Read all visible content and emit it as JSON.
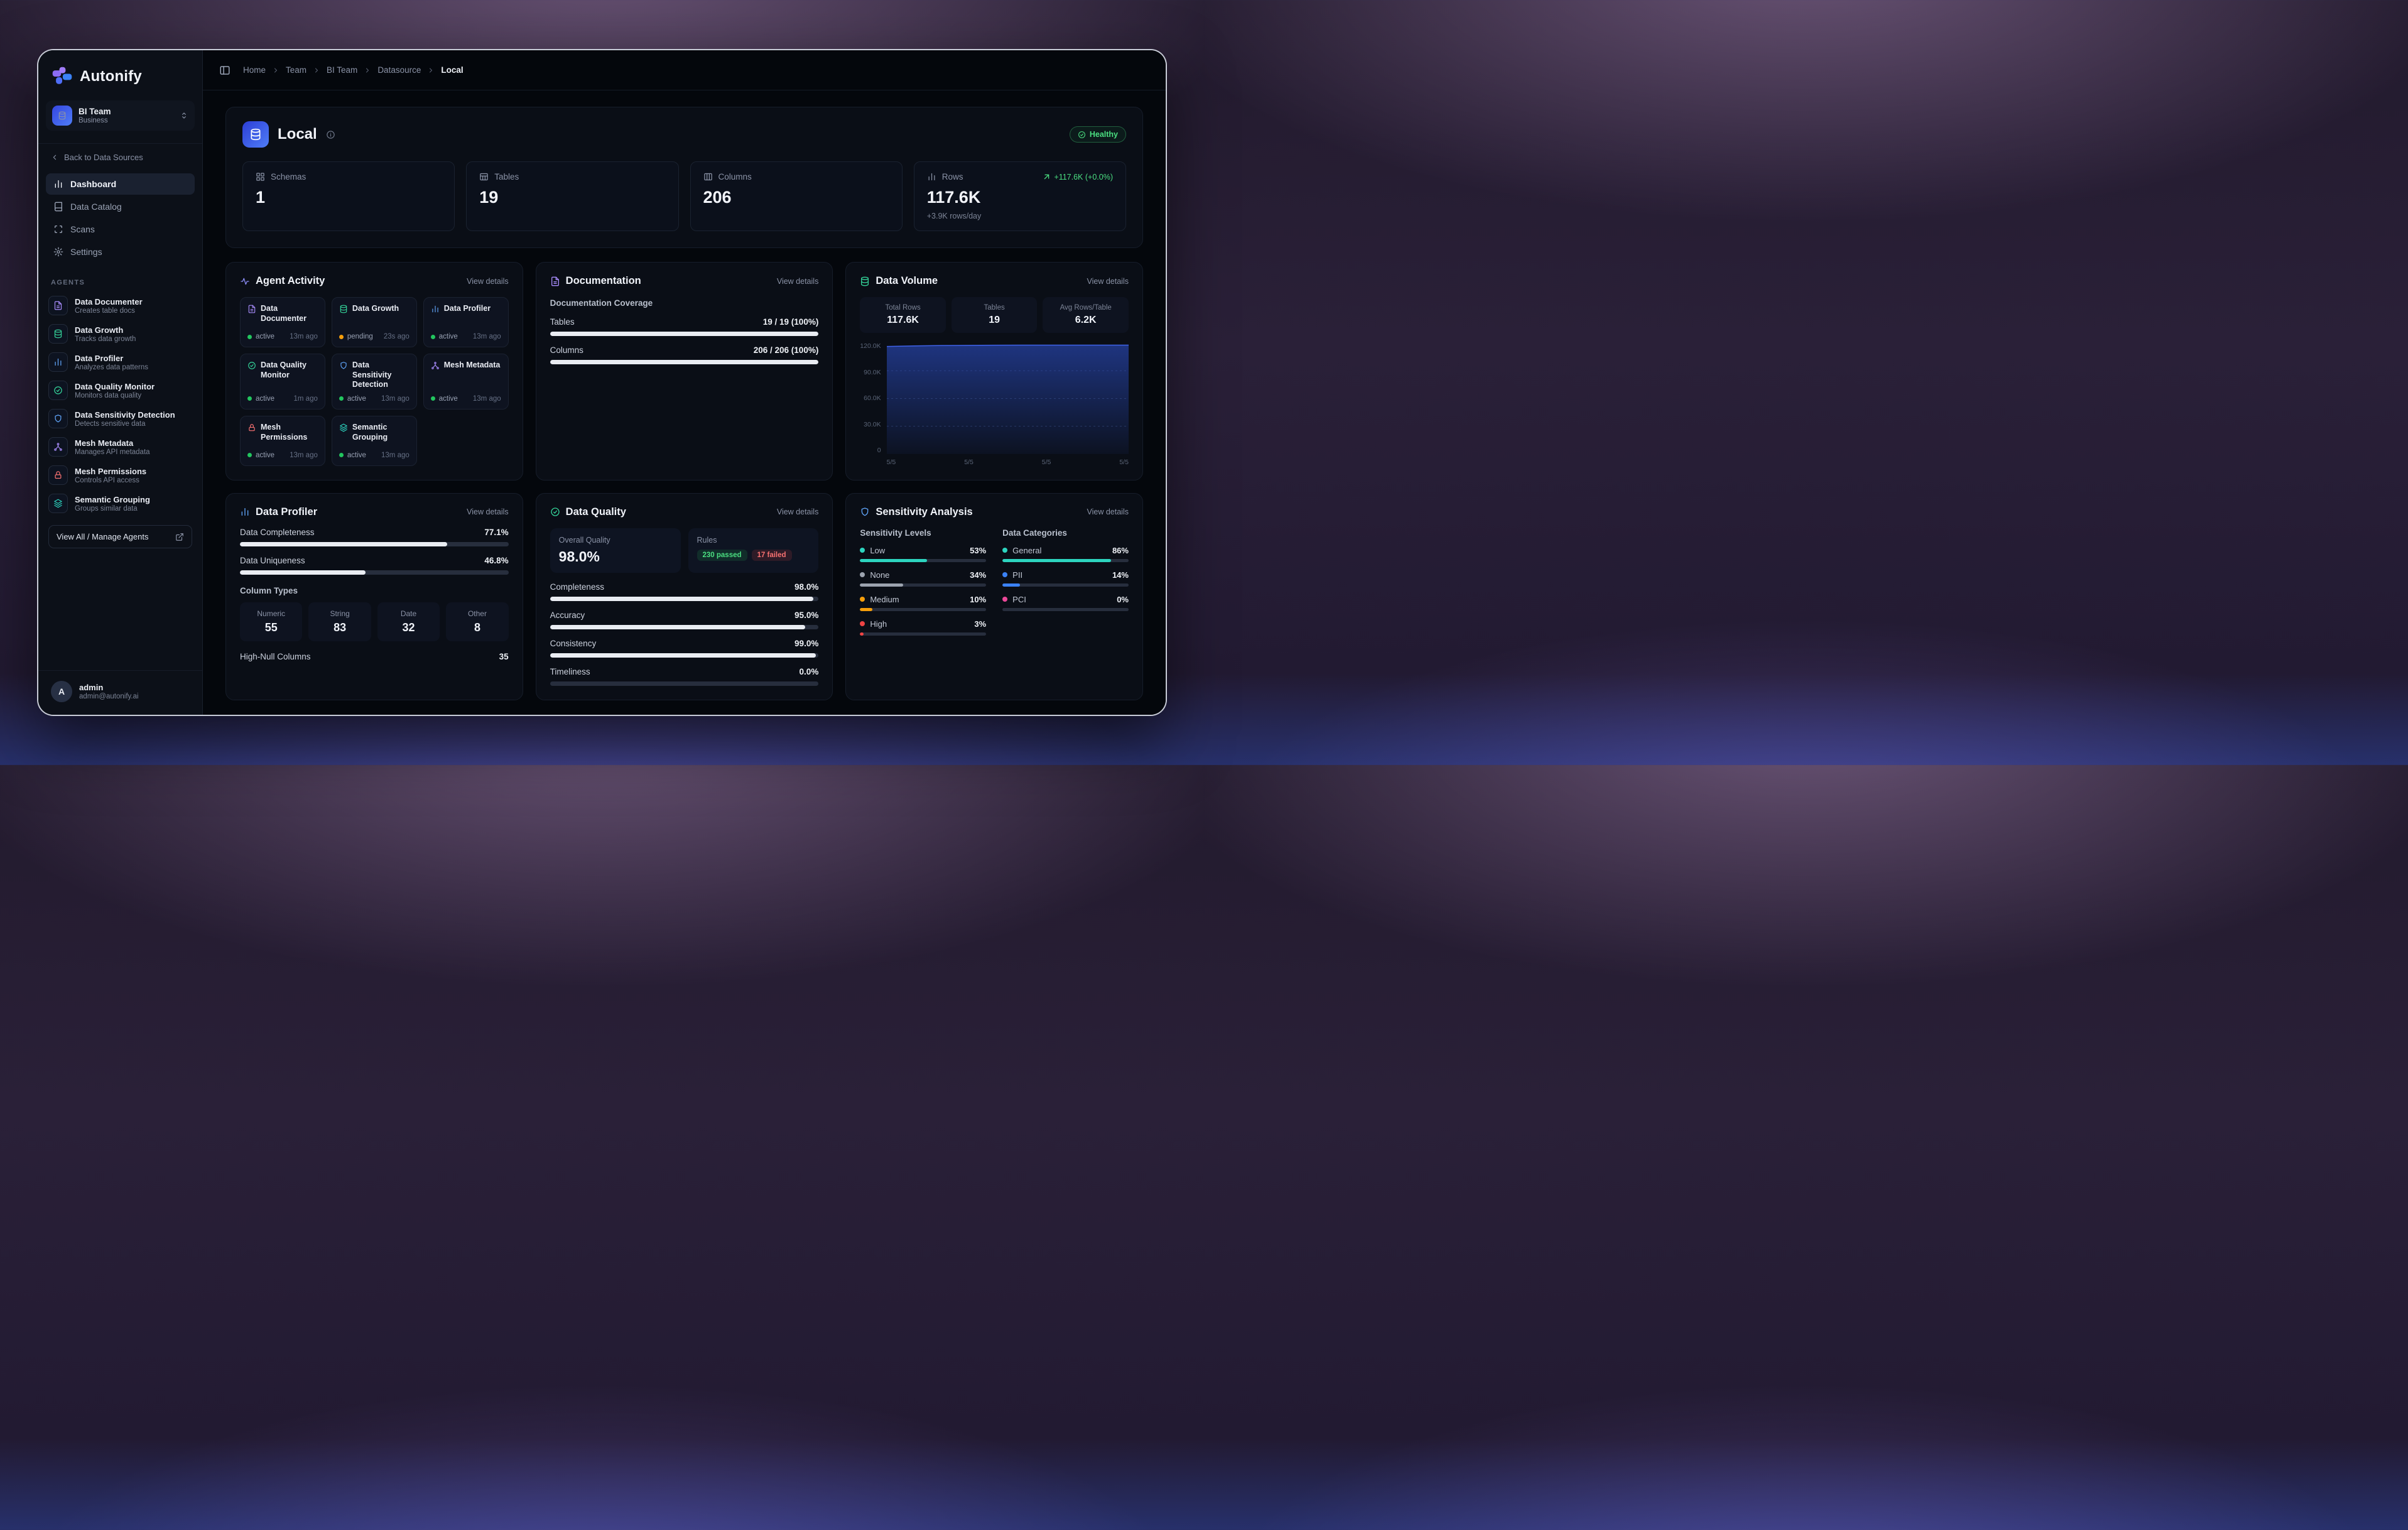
{
  "app": {
    "name": "Autonify",
    "colors": {
      "accent_blue": "#3b82f6",
      "green": "#22c55e",
      "amber": "#f59e0b",
      "red": "#ef4444",
      "teal": "#2dd4bf",
      "purple": "#a78bfa",
      "pink": "#ec4899",
      "gray": "#9ca3af"
    }
  },
  "sidebar": {
    "team": {
      "name": "BI Team",
      "type": "Business"
    },
    "back": "Back to Data Sources",
    "nav": [
      {
        "label": "Dashboard",
        "icon": "bar-chart-icon"
      },
      {
        "label": "Data Catalog",
        "icon": "book-icon"
      },
      {
        "label": "Scans",
        "icon": "scan-icon"
      },
      {
        "label": "Settings",
        "icon": "gear-icon"
      }
    ],
    "agents_heading": "AGENTS",
    "agents": [
      {
        "name": "Data Documenter",
        "desc": "Creates table docs",
        "icon": "file-text-icon",
        "color": "#a78bfa"
      },
      {
        "name": "Data Growth",
        "desc": "Tracks data growth",
        "icon": "database-icon",
        "color": "#34d399"
      },
      {
        "name": "Data Profiler",
        "desc": "Analyzes data patterns",
        "icon": "bar-chart-icon",
        "color": "#60a5fa"
      },
      {
        "name": "Data Quality Monitor",
        "desc": "Monitors data quality",
        "icon": "check-circle-icon",
        "color": "#34d399"
      },
      {
        "name": "Data Sensitivity Detection",
        "desc": "Detects sensitive data",
        "icon": "shield-icon",
        "color": "#60a5fa"
      },
      {
        "name": "Mesh Metadata",
        "desc": "Manages API metadata",
        "icon": "network-icon",
        "color": "#a78bfa"
      },
      {
        "name": "Mesh Permissions",
        "desc": "Controls API access",
        "icon": "lock-icon",
        "color": "#f87171"
      },
      {
        "name": "Semantic Grouping",
        "desc": "Groups similar data",
        "icon": "layers-icon",
        "color": "#2dd4bf"
      }
    ],
    "view_all": "View All / Manage Agents",
    "user": {
      "initial": "A",
      "name": "admin",
      "email": "admin@autonify.ai"
    }
  },
  "breadcrumb": {
    "items": [
      "Home",
      "Team",
      "BI Team",
      "Datasource",
      "Local"
    ]
  },
  "header": {
    "title": "Local",
    "status": "Healthy",
    "stats": [
      {
        "label": "Schemas",
        "value": "1"
      },
      {
        "label": "Tables",
        "value": "19"
      },
      {
        "label": "Columns",
        "value": "206"
      },
      {
        "label": "Rows",
        "value": "117.6K",
        "delta": "+117.6K (+0.0%)",
        "sub": "+3.9K rows/day"
      }
    ]
  },
  "agent_activity": {
    "title": "Agent Activity",
    "view_details": "View details",
    "tiles": [
      {
        "name": "Data Documenter",
        "status": "active",
        "time": "13m ago"
      },
      {
        "name": "Data Growth",
        "status": "pending",
        "time": "23s ago"
      },
      {
        "name": "Data Profiler",
        "status": "active",
        "time": "13m ago"
      },
      {
        "name": "Data Quality Monitor",
        "status": "active",
        "time": "1m ago"
      },
      {
        "name": "Data Sensitivity Detection",
        "status": "active",
        "time": "13m ago"
      },
      {
        "name": "Mesh Metadata",
        "status": "active",
        "time": "13m ago"
      },
      {
        "name": "Mesh Permissions",
        "status": "active",
        "time": "13m ago"
      },
      {
        "name": "Semantic Grouping",
        "status": "active",
        "time": "13m ago"
      }
    ]
  },
  "documentation": {
    "title": "Documentation",
    "view_details": "View details",
    "coverage_heading": "Documentation Coverage",
    "rows": [
      {
        "label": "Tables",
        "value": "19 / 19 (100%)",
        "pct": 100
      },
      {
        "label": "Columns",
        "value": "206 / 206 (100%)",
        "pct": 100
      }
    ]
  },
  "data_volume": {
    "title": "Data Volume",
    "view_details": "View details",
    "stats": [
      {
        "label": "Total Rows",
        "value": "117.6K"
      },
      {
        "label": "Tables",
        "value": "19"
      },
      {
        "label": "Avg Rows/Table",
        "value": "6.2K"
      }
    ],
    "chart_data": {
      "type": "area",
      "x": [
        "5/5",
        "5/5",
        "5/5",
        "5/5"
      ],
      "values": [
        116.2,
        116.8,
        117.2,
        117.4,
        117.5,
        117.6,
        117.6,
        117.6,
        117.6,
        117.6
      ],
      "ylabel_ticks": [
        "120.0K",
        "90.0K",
        "60.0K",
        "30.0K",
        "0"
      ],
      "ylim": [
        0,
        120
      ],
      "line_color": "#3f62e8",
      "grid": "dashed"
    }
  },
  "data_profiler": {
    "title": "Data Profiler",
    "view_details": "View details",
    "metrics": [
      {
        "label": "Data Completeness",
        "value": "77.1%",
        "pct": 77.1
      },
      {
        "label": "Data Uniqueness",
        "value": "46.8%",
        "pct": 46.8
      }
    ],
    "column_types_heading": "Column Types",
    "column_types": [
      {
        "label": "Numeric",
        "value": "55"
      },
      {
        "label": "String",
        "value": "83"
      },
      {
        "label": "Date",
        "value": "32"
      },
      {
        "label": "Other",
        "value": "8"
      }
    ],
    "high_null": {
      "label": "High-Null Columns",
      "value": "35"
    }
  },
  "data_quality": {
    "title": "Data Quality",
    "view_details": "View details",
    "overall": {
      "label": "Overall Quality",
      "value": "98.0%"
    },
    "rules": {
      "label": "Rules",
      "passed": "230 passed",
      "failed": "17 failed"
    },
    "metrics": [
      {
        "label": "Completeness",
        "value": "98.0%",
        "pct": 98
      },
      {
        "label": "Accuracy",
        "value": "95.0%",
        "pct": 95
      },
      {
        "label": "Consistency",
        "value": "99.0%",
        "pct": 99
      },
      {
        "label": "Timeliness",
        "value": "0.0%",
        "pct": 0
      }
    ]
  },
  "sensitivity": {
    "title": "Sensitivity Analysis",
    "view_details": "View details",
    "levels_heading": "Sensitivity Levels",
    "levels": [
      {
        "label": "Low",
        "value": "53%",
        "pct": 53,
        "color": "#2dd4bf"
      },
      {
        "label": "None",
        "value": "34%",
        "pct": 34,
        "color": "#9ca3af"
      },
      {
        "label": "Medium",
        "value": "10%",
        "pct": 10,
        "color": "#f59e0b"
      },
      {
        "label": "High",
        "value": "3%",
        "pct": 3,
        "color": "#ef4444"
      }
    ],
    "categories_heading": "Data Categories",
    "categories": [
      {
        "label": "General",
        "value": "86%",
        "pct": 86,
        "color": "#2dd4bf"
      },
      {
        "label": "PII",
        "value": "14%",
        "pct": 14,
        "color": "#3b82f6"
      },
      {
        "label": "PCI",
        "value": "0%",
        "pct": 0,
        "color": "#ec4899"
      }
    ]
  }
}
